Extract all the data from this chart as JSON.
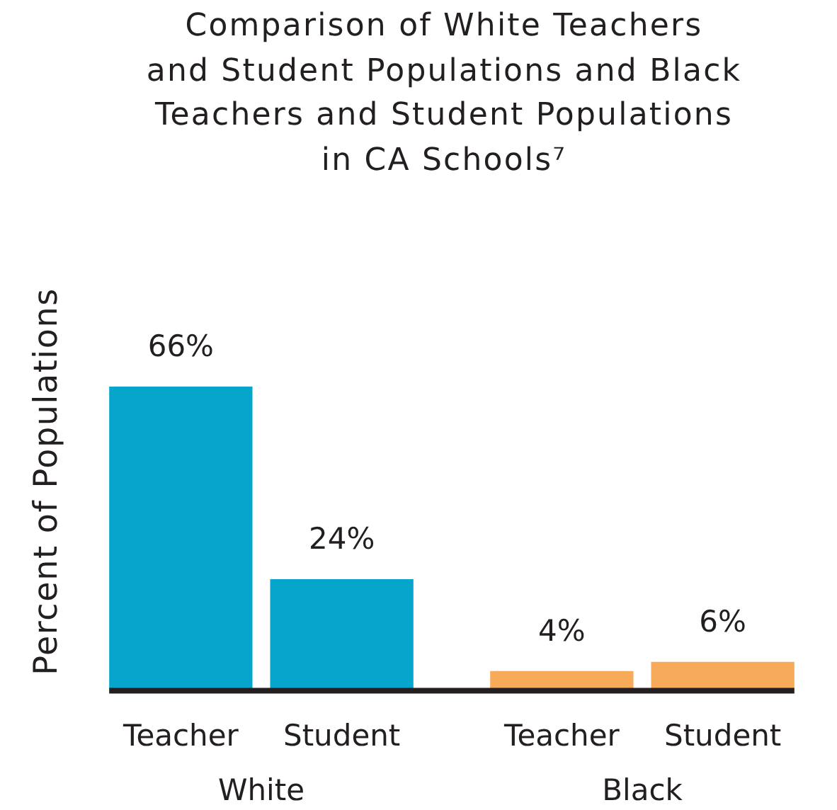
{
  "chart_data": {
    "type": "bar",
    "title": "Comparison of White Teachers\nand Student Populations and Black\nTeachers and Student Populations\nin CA Schools⁷",
    "ylabel": "Percent of Populations",
    "categories": [
      "White",
      "Black"
    ],
    "series": [
      {
        "name": "Teacher",
        "colors": [
          "#06a6cc",
          "#f6aa5a"
        ],
        "values": [
          66,
          4
        ],
        "value_labels": [
          "66%",
          "4%"
        ]
      },
      {
        "name": "Student",
        "colors": [
          "#06a6cc",
          "#f6aa5a"
        ],
        "values": [
          24,
          6
        ],
        "value_labels": [
          "24%",
          "6%"
        ]
      }
    ],
    "tick_labels": "x"
  }
}
